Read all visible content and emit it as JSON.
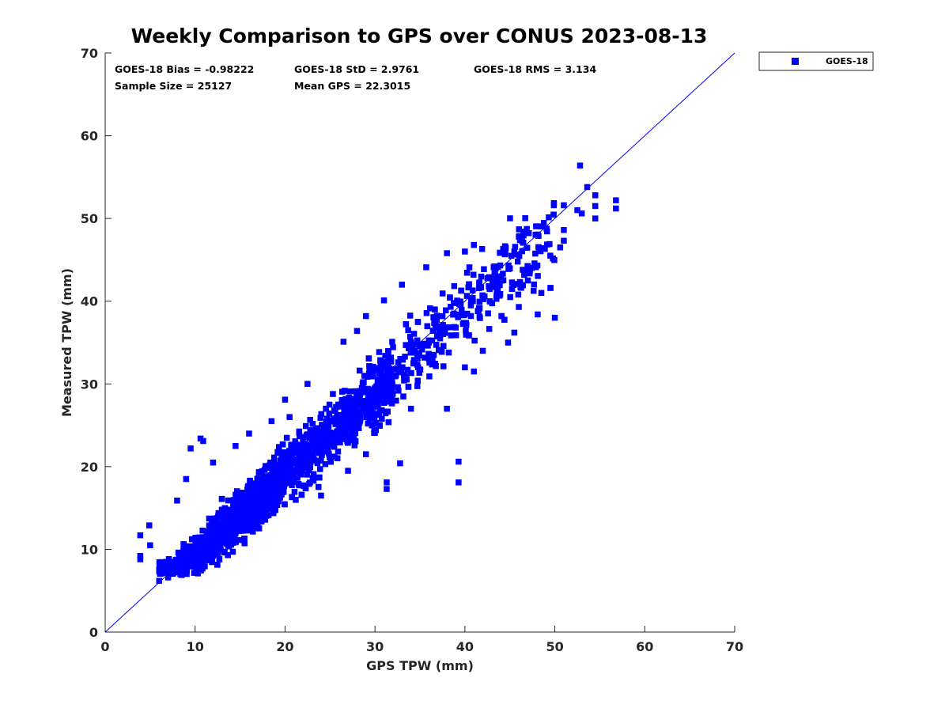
{
  "chart_data": {
    "type": "scatter",
    "title": "Weekly Comparison to GPS over CONUS 2023-08-13",
    "xlabel": "GPS TPW (mm)",
    "ylabel": "Measured TPW (mm)",
    "xlim": [
      0,
      70
    ],
    "ylim": [
      0,
      70
    ],
    "xticks": [
      "0",
      "10",
      "20",
      "30",
      "40",
      "50",
      "60",
      "70"
    ],
    "yticks": [
      "0",
      "10",
      "20",
      "30",
      "40",
      "50",
      "60",
      "70"
    ],
    "grid": false,
    "legend_position": "outside top-right",
    "stats": {
      "bias": "GOES-18 Bias = -0.98222",
      "std": "GOES-18 StD = 2.9761",
      "rms": "GOES-18 RMS = 3.134",
      "sample_size": "Sample Size = 25127",
      "mean_gps": "Mean GPS = 22.3015"
    },
    "reference_line": {
      "x": [
        0,
        70
      ],
      "y": [
        0,
        70
      ]
    },
    "series": [
      {
        "name": "GOES-18",
        "color": "#0000ff",
        "marker": "square",
        "outliers": [
          [
            52.8,
            56.4
          ],
          [
            53.6,
            53.8
          ],
          [
            54.5,
            52.8
          ],
          [
            56.8,
            52.2
          ],
          [
            56.8,
            51.2
          ],
          [
            54.5,
            50.0
          ],
          [
            54.5,
            51.5
          ],
          [
            52.5,
            51.0
          ],
          [
            51.0,
            51.6
          ],
          [
            53.0,
            50.6
          ],
          [
            51.0,
            48.6
          ],
          [
            51.0,
            47.3
          ],
          [
            50.6,
            46.5
          ],
          [
            46.5,
            48.4
          ],
          [
            46.0,
            47.8
          ],
          [
            45.5,
            46.0
          ],
          [
            41.0,
            46.8
          ],
          [
            40.0,
            46.0
          ],
          [
            39.3,
            20.6
          ],
          [
            39.3,
            18.1
          ],
          [
            31.3,
            18.1
          ],
          [
            31.3,
            17.3
          ],
          [
            32.8,
            20.4
          ],
          [
            10.6,
            23.4
          ],
          [
            10.9,
            23.1
          ],
          [
            9.5,
            22.2
          ],
          [
            3.9,
            11.7
          ],
          [
            3.9,
            9.2
          ],
          [
            3.9,
            8.8
          ],
          [
            4.9,
            12.9
          ],
          [
            5.0,
            10.5
          ],
          [
            35.7,
            44.1
          ],
          [
            38.0,
            45.8
          ],
          [
            43.2,
            44.1
          ],
          [
            44.8,
            35.0
          ],
          [
            46.0,
            39.3
          ],
          [
            48.1,
            38.4
          ],
          [
            50.0,
            38.0
          ],
          [
            45.5,
            36.2
          ],
          [
            41.0,
            31.5
          ],
          [
            20.0,
            28.1
          ],
          [
            22.5,
            30.0
          ],
          [
            26.5,
            35.1
          ],
          [
            28.0,
            36.4
          ],
          [
            29.0,
            38.2
          ],
          [
            31.0,
            40.1
          ],
          [
            33.0,
            42.0
          ],
          [
            36.0,
            35.0
          ],
          [
            38.0,
            27.0
          ],
          [
            40.0,
            32.0
          ],
          [
            42.0,
            34.0
          ],
          [
            44.0,
            43.0
          ],
          [
            47.0,
            42.5
          ],
          [
            48.5,
            41.0
          ],
          [
            49.5,
            45.5
          ],
          [
            8.0,
            15.9
          ],
          [
            9.0,
            18.5
          ],
          [
            12.0,
            20.5
          ],
          [
            14.5,
            22.5
          ],
          [
            16.0,
            24.0
          ],
          [
            18.5,
            25.5
          ],
          [
            20.5,
            26.0
          ],
          [
            6.0,
            6.2
          ],
          [
            7.0,
            6.6
          ],
          [
            8.5,
            6.9
          ],
          [
            24.0,
            16.5
          ],
          [
            27.0,
            19.5
          ],
          [
            29.0,
            21.5
          ],
          [
            34.0,
            27.0
          ],
          [
            30.5,
            25.0
          ]
        ]
      }
    ]
  }
}
